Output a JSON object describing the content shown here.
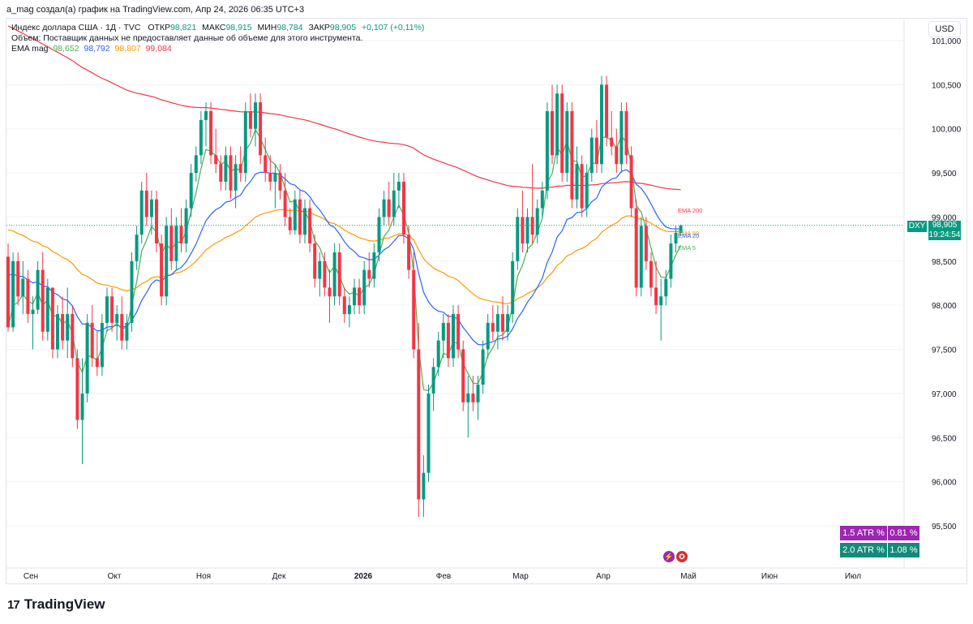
{
  "caption": "a_mag создал(а) график на TradingView.com, Апр 24, 2026 06:35 UTC+3",
  "legend": {
    "title": "Индекс доллара США · 1Д · TVC",
    "open_label": "ОТКР",
    "open_value": "98,821",
    "high_label": "МАКС",
    "high_value": "98,915",
    "low_label": "МИН",
    "low_value": "98,784",
    "close_label": "ЗАКР",
    "close_value": "98,905",
    "change": "+0,107 (+0,11%)",
    "volume_note": "Объем: Поставщик данных не предоставляет данные об объеме для этого инструмента.",
    "ema_label": "EMA mag",
    "ema_values": [
      "98,652",
      "98,792",
      "98,807",
      "99,084"
    ]
  },
  "currency_button": "USD",
  "ticker": {
    "symbol": "DXY",
    "price": "98,905",
    "countdown": "19:24:54"
  },
  "ema_labels": {
    "ema200": "EMA 200",
    "ema50": "EMA 50",
    "ema20": "EMA 20",
    "ema5": "EMA 5"
  },
  "atr": [
    {
      "label": "1.5 ATR %",
      "value": "0.81 %"
    },
    {
      "label": "2.0 ATR %",
      "value": "1.08 %"
    }
  ],
  "brand": {
    "name": "TradingView",
    "logo": "17"
  },
  "colors": {
    "up": "#089981",
    "down": "#f23645",
    "ema5": "#4caf50",
    "ema20": "#2962ff",
    "ema50": "#ff9800",
    "ema200": "#f23645"
  },
  "chart_data": {
    "type": "candlestick",
    "title": "Индекс доллара США · 1Д · TVC",
    "y_axis_ticks": [
      "101,000",
      "100,500",
      "100,000",
      "99,500",
      "99,000",
      "98,500",
      "98,000",
      "97,500",
      "97,000",
      "96,500",
      "96,000",
      "95,500"
    ],
    "y_axis_tick_values": [
      101.0,
      100.5,
      100.0,
      99.5,
      99.0,
      98.5,
      98.0,
      97.5,
      97.0,
      96.5,
      96.0,
      95.5
    ],
    "ylim": [
      95.0,
      101.4
    ],
    "x_axis_ticks": [
      "Сен",
      "Окт",
      "Ноя",
      "Дек",
      "2026",
      "Фев",
      "Мар",
      "Апр",
      "Май",
      "Июн",
      "Июл"
    ],
    "last_price": 98.905,
    "ohlc": [
      {
        "o": 98.55,
        "h": 98.7,
        "l": 97.7,
        "c": 97.75
      },
      {
        "o": 97.75,
        "h": 98.6,
        "l": 97.7,
        "c": 98.5
      },
      {
        "o": 98.5,
        "h": 98.6,
        "l": 98.0,
        "c": 98.1
      },
      {
        "o": 98.1,
        "h": 98.5,
        "l": 97.9,
        "c": 98.3
      },
      {
        "o": 98.3,
        "h": 98.4,
        "l": 97.8,
        "c": 97.9
      },
      {
        "o": 97.9,
        "h": 98.1,
        "l": 97.5,
        "c": 97.95
      },
      {
        "o": 97.95,
        "h": 98.5,
        "l": 97.9,
        "c": 98.4
      },
      {
        "o": 98.4,
        "h": 98.6,
        "l": 97.6,
        "c": 97.7
      },
      {
        "o": 97.7,
        "h": 98.3,
        "l": 97.6,
        "c": 98.2
      },
      {
        "o": 98.2,
        "h": 98.2,
        "l": 97.4,
        "c": 97.5
      },
      {
        "o": 97.5,
        "h": 98.0,
        "l": 97.4,
        "c": 97.9
      },
      {
        "o": 97.9,
        "h": 98.1,
        "l": 97.5,
        "c": 97.6
      },
      {
        "o": 97.6,
        "h": 98.2,
        "l": 97.4,
        "c": 97.9
      },
      {
        "o": 97.9,
        "h": 98.0,
        "l": 97.3,
        "c": 97.4
      },
      {
        "o": 97.4,
        "h": 97.5,
        "l": 96.6,
        "c": 96.7
      },
      {
        "o": 96.7,
        "h": 97.4,
        "l": 96.2,
        "c": 97.0
      },
      {
        "o": 97.0,
        "h": 97.9,
        "l": 96.9,
        "c": 97.8
      },
      {
        "o": 97.8,
        "h": 98.0,
        "l": 97.3,
        "c": 97.4
      },
      {
        "o": 97.4,
        "h": 97.7,
        "l": 97.2,
        "c": 97.3
      },
      {
        "o": 97.3,
        "h": 97.9,
        "l": 97.2,
        "c": 97.8
      },
      {
        "o": 97.8,
        "h": 98.2,
        "l": 97.7,
        "c": 98.1
      },
      {
        "o": 98.1,
        "h": 98.2,
        "l": 97.7,
        "c": 97.8
      },
      {
        "o": 97.8,
        "h": 98.0,
        "l": 97.6,
        "c": 97.9
      },
      {
        "o": 97.9,
        "h": 98.1,
        "l": 97.5,
        "c": 97.6
      },
      {
        "o": 97.6,
        "h": 97.9,
        "l": 97.5,
        "c": 97.8
      },
      {
        "o": 97.8,
        "h": 98.6,
        "l": 97.7,
        "c": 98.5
      },
      {
        "o": 98.5,
        "h": 98.9,
        "l": 98.4,
        "c": 98.8
      },
      {
        "o": 98.8,
        "h": 99.4,
        "l": 98.7,
        "c": 99.3
      },
      {
        "o": 99.3,
        "h": 99.5,
        "l": 98.9,
        "c": 99.0
      },
      {
        "o": 99.0,
        "h": 99.3,
        "l": 98.8,
        "c": 99.2
      },
      {
        "o": 99.2,
        "h": 99.3,
        "l": 98.6,
        "c": 98.7
      },
      {
        "o": 98.7,
        "h": 98.8,
        "l": 98.0,
        "c": 98.1
      },
      {
        "o": 98.1,
        "h": 99.0,
        "l": 98.0,
        "c": 98.9
      },
      {
        "o": 98.9,
        "h": 99.1,
        "l": 98.4,
        "c": 98.5
      },
      {
        "o": 98.5,
        "h": 99.0,
        "l": 98.4,
        "c": 98.9
      },
      {
        "o": 98.9,
        "h": 99.1,
        "l": 98.6,
        "c": 98.7
      },
      {
        "o": 98.7,
        "h": 99.2,
        "l": 98.6,
        "c": 99.1
      },
      {
        "o": 99.1,
        "h": 99.6,
        "l": 99.0,
        "c": 99.5
      },
      {
        "o": 99.5,
        "h": 99.8,
        "l": 99.4,
        "c": 99.7
      },
      {
        "o": 99.7,
        "h": 100.2,
        "l": 99.6,
        "c": 100.1
      },
      {
        "o": 100.1,
        "h": 100.3,
        "l": 99.8,
        "c": 100.2
      },
      {
        "o": 100.2,
        "h": 100.3,
        "l": 99.6,
        "c": 99.7
      },
      {
        "o": 99.7,
        "h": 100.0,
        "l": 99.5,
        "c": 99.6
      },
      {
        "o": 99.6,
        "h": 99.7,
        "l": 99.3,
        "c": 99.4
      },
      {
        "o": 99.4,
        "h": 99.8,
        "l": 99.3,
        "c": 99.7
      },
      {
        "o": 99.7,
        "h": 99.8,
        "l": 99.2,
        "c": 99.3
      },
      {
        "o": 99.3,
        "h": 99.7,
        "l": 99.1,
        "c": 99.6
      },
      {
        "o": 99.6,
        "h": 99.8,
        "l": 99.4,
        "c": 99.5
      },
      {
        "o": 99.5,
        "h": 100.3,
        "l": 99.4,
        "c": 100.2
      },
      {
        "o": 100.2,
        "h": 100.4,
        "l": 99.9,
        "c": 100.0
      },
      {
        "o": 100.0,
        "h": 100.4,
        "l": 99.8,
        "c": 100.3
      },
      {
        "o": 100.3,
        "h": 100.4,
        "l": 99.6,
        "c": 99.7
      },
      {
        "o": 99.7,
        "h": 99.9,
        "l": 99.4,
        "c": 99.5
      },
      {
        "o": 99.5,
        "h": 99.7,
        "l": 99.3,
        "c": 99.4
      },
      {
        "o": 99.4,
        "h": 99.6,
        "l": 99.1,
        "c": 99.5
      },
      {
        "o": 99.5,
        "h": 99.6,
        "l": 99.2,
        "c": 99.3
      },
      {
        "o": 99.3,
        "h": 99.5,
        "l": 98.9,
        "c": 99.0
      },
      {
        "o": 99.0,
        "h": 99.1,
        "l": 98.8,
        "c": 98.85
      },
      {
        "o": 98.85,
        "h": 99.3,
        "l": 98.8,
        "c": 99.2
      },
      {
        "o": 99.2,
        "h": 99.3,
        "l": 98.7,
        "c": 98.8
      },
      {
        "o": 98.8,
        "h": 99.2,
        "l": 98.7,
        "c": 99.1
      },
      {
        "o": 99.1,
        "h": 99.2,
        "l": 98.6,
        "c": 98.7
      },
      {
        "o": 98.7,
        "h": 98.8,
        "l": 98.2,
        "c": 98.3
      },
      {
        "o": 98.3,
        "h": 98.6,
        "l": 98.1,
        "c": 98.5
      },
      {
        "o": 98.5,
        "h": 98.6,
        "l": 98.1,
        "c": 98.2
      },
      {
        "o": 98.2,
        "h": 98.4,
        "l": 97.8,
        "c": 98.1
      },
      {
        "o": 98.1,
        "h": 98.7,
        "l": 98.0,
        "c": 98.6
      },
      {
        "o": 98.6,
        "h": 98.7,
        "l": 98.0,
        "c": 98.1
      },
      {
        "o": 98.1,
        "h": 98.2,
        "l": 97.8,
        "c": 97.9
      },
      {
        "o": 97.9,
        "h": 98.1,
        "l": 97.75,
        "c": 98.0
      },
      {
        "o": 98.0,
        "h": 98.3,
        "l": 97.9,
        "c": 98.2
      },
      {
        "o": 98.2,
        "h": 98.3,
        "l": 97.9,
        "c": 98.0
      },
      {
        "o": 98.0,
        "h": 98.5,
        "l": 97.9,
        "c": 98.4
      },
      {
        "o": 98.4,
        "h": 98.6,
        "l": 98.2,
        "c": 98.3
      },
      {
        "o": 98.3,
        "h": 98.7,
        "l": 98.2,
        "c": 98.6
      },
      {
        "o": 98.6,
        "h": 99.1,
        "l": 98.5,
        "c": 99.0
      },
      {
        "o": 99.0,
        "h": 99.3,
        "l": 98.9,
        "c": 99.2
      },
      {
        "o": 99.2,
        "h": 99.4,
        "l": 98.9,
        "c": 99.0
      },
      {
        "o": 99.0,
        "h": 99.5,
        "l": 98.9,
        "c": 99.3
      },
      {
        "o": 99.3,
        "h": 99.5,
        "l": 99.1,
        "c": 99.4
      },
      {
        "o": 99.4,
        "h": 99.5,
        "l": 98.7,
        "c": 98.8
      },
      {
        "o": 98.8,
        "h": 98.9,
        "l": 98.3,
        "c": 98.4
      },
      {
        "o": 98.4,
        "h": 98.6,
        "l": 97.4,
        "c": 97.5
      },
      {
        "o": 97.5,
        "h": 97.8,
        "l": 95.6,
        "c": 95.8
      },
      {
        "o": 95.8,
        "h": 96.3,
        "l": 95.6,
        "c": 96.1
      },
      {
        "o": 96.1,
        "h": 97.1,
        "l": 96.0,
        "c": 97.0
      },
      {
        "o": 97.0,
        "h": 97.4,
        "l": 96.8,
        "c": 97.3
      },
      {
        "o": 97.3,
        "h": 97.7,
        "l": 97.2,
        "c": 97.6
      },
      {
        "o": 97.6,
        "h": 97.9,
        "l": 97.4,
        "c": 97.8
      },
      {
        "o": 97.8,
        "h": 97.9,
        "l": 97.3,
        "c": 97.4
      },
      {
        "o": 97.4,
        "h": 98.0,
        "l": 97.3,
        "c": 97.9
      },
      {
        "o": 97.9,
        "h": 98.0,
        "l": 97.4,
        "c": 97.5
      },
      {
        "o": 97.5,
        "h": 97.6,
        "l": 96.8,
        "c": 96.9
      },
      {
        "o": 96.9,
        "h": 97.2,
        "l": 96.5,
        "c": 97.0
      },
      {
        "o": 97.0,
        "h": 97.2,
        "l": 96.8,
        "c": 96.9
      },
      {
        "o": 96.9,
        "h": 97.2,
        "l": 96.7,
        "c": 97.1
      },
      {
        "o": 97.1,
        "h": 97.6,
        "l": 97.0,
        "c": 97.5
      },
      {
        "o": 97.5,
        "h": 97.9,
        "l": 97.4,
        "c": 97.8
      },
      {
        "o": 97.8,
        "h": 98.0,
        "l": 97.6,
        "c": 97.7
      },
      {
        "o": 97.7,
        "h": 98.0,
        "l": 97.5,
        "c": 97.9
      },
      {
        "o": 97.9,
        "h": 98.1,
        "l": 97.6,
        "c": 97.7
      },
      {
        "o": 97.7,
        "h": 98.0,
        "l": 97.6,
        "c": 97.9
      },
      {
        "o": 97.9,
        "h": 98.6,
        "l": 97.8,
        "c": 98.5
      },
      {
        "o": 98.5,
        "h": 99.1,
        "l": 98.4,
        "c": 99.0
      },
      {
        "o": 99.0,
        "h": 99.3,
        "l": 98.6,
        "c": 98.7
      },
      {
        "o": 98.7,
        "h": 99.1,
        "l": 98.6,
        "c": 99.0
      },
      {
        "o": 99.0,
        "h": 99.6,
        "l": 98.7,
        "c": 98.8
      },
      {
        "o": 98.8,
        "h": 99.2,
        "l": 98.7,
        "c": 99.1
      },
      {
        "o": 99.1,
        "h": 99.4,
        "l": 99.0,
        "c": 99.3
      },
      {
        "o": 99.3,
        "h": 100.3,
        "l": 99.2,
        "c": 100.2
      },
      {
        "o": 100.2,
        "h": 100.5,
        "l": 99.6,
        "c": 99.7
      },
      {
        "o": 99.7,
        "h": 100.5,
        "l": 99.6,
        "c": 100.4
      },
      {
        "o": 100.4,
        "h": 100.5,
        "l": 99.4,
        "c": 99.5
      },
      {
        "o": 99.5,
        "h": 100.3,
        "l": 99.4,
        "c": 100.2
      },
      {
        "o": 100.2,
        "h": 100.3,
        "l": 99.1,
        "c": 99.2
      },
      {
        "o": 99.2,
        "h": 99.8,
        "l": 99.1,
        "c": 99.6
      },
      {
        "o": 99.6,
        "h": 99.7,
        "l": 99.0,
        "c": 99.1
      },
      {
        "o": 99.1,
        "h": 99.6,
        "l": 99.0,
        "c": 99.5
      },
      {
        "o": 99.5,
        "h": 100.0,
        "l": 99.4,
        "c": 99.9
      },
      {
        "o": 99.9,
        "h": 100.1,
        "l": 99.5,
        "c": 99.6
      },
      {
        "o": 99.6,
        "h": 100.6,
        "l": 99.5,
        "c": 100.5
      },
      {
        "o": 100.5,
        "h": 100.6,
        "l": 99.8,
        "c": 99.9
      },
      {
        "o": 99.9,
        "h": 100.2,
        "l": 99.7,
        "c": 99.8
      },
      {
        "o": 99.8,
        "h": 100.0,
        "l": 99.5,
        "c": 99.6
      },
      {
        "o": 99.6,
        "h": 100.3,
        "l": 99.5,
        "c": 100.2
      },
      {
        "o": 100.2,
        "h": 100.3,
        "l": 99.6,
        "c": 99.7
      },
      {
        "o": 99.7,
        "h": 99.8,
        "l": 99.0,
        "c": 99.1
      },
      {
        "o": 99.1,
        "h": 99.2,
        "l": 98.1,
        "c": 98.2
      },
      {
        "o": 98.2,
        "h": 99.0,
        "l": 98.1,
        "c": 98.9
      },
      {
        "o": 98.9,
        "h": 99.0,
        "l": 98.4,
        "c": 98.5
      },
      {
        "o": 98.5,
        "h": 98.6,
        "l": 98.1,
        "c": 98.2
      },
      {
        "o": 98.2,
        "h": 98.5,
        "l": 97.9,
        "c": 98.0
      },
      {
        "o": 98.0,
        "h": 98.3,
        "l": 97.6,
        "c": 98.1
      },
      {
        "o": 98.1,
        "h": 98.4,
        "l": 98.0,
        "c": 98.3
      },
      {
        "o": 98.3,
        "h": 98.8,
        "l": 98.2,
        "c": 98.7
      },
      {
        "o": 98.7,
        "h": 98.9,
        "l": 98.6,
        "c": 98.821
      },
      {
        "o": 98.821,
        "h": 98.915,
        "l": 98.784,
        "c": 98.905
      }
    ]
  }
}
